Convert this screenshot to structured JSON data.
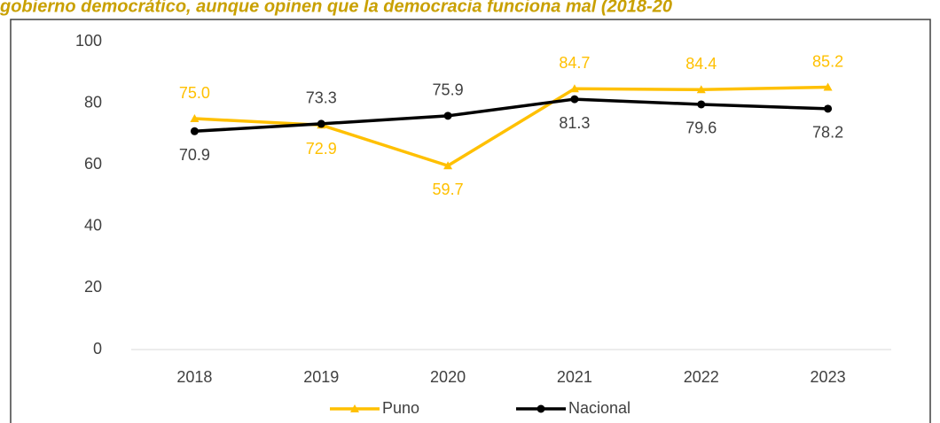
{
  "chart_data": {
    "type": "line",
    "title": "gobierno democrático, aunque opinen que la democracia funciona mal (2018-20",
    "categories": [
      "2018",
      "2019",
      "2020",
      "2021",
      "2022",
      "2023"
    ],
    "series": [
      {
        "name": "Puno",
        "color": "#FFC000",
        "marker": "triangle",
        "values": [
          75,
          72.9,
          59.7,
          84.7,
          84.4,
          85.2
        ],
        "value_labels": [
          "75.0",
          "72.9",
          "59.7",
          "84.7",
          "84.4",
          "85.2"
        ]
      },
      {
        "name": "Nacional",
        "color": "#000000",
        "marker": "circle",
        "values": [
          70.9,
          73.3,
          75.9,
          81.3,
          79.6,
          78.2
        ]
      }
    ],
    "ylim": [
      0,
      100
    ],
    "yticks": [
      0,
      20,
      40,
      60,
      80,
      100
    ],
    "grid": false,
    "legend": "bottom"
  }
}
